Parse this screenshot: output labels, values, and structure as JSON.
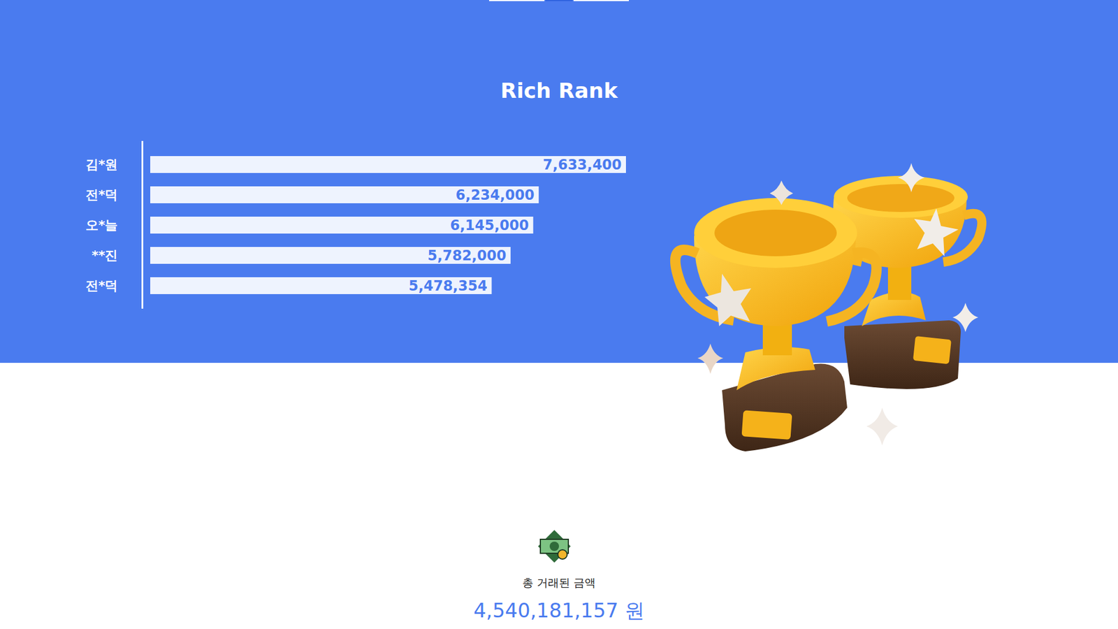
{
  "chart_data": {
    "type": "bar",
    "orientation": "horizontal",
    "title": "Rich Rank",
    "categories": [
      "김*원",
      "전*덕",
      "오*늘",
      "**진",
      "전*덕"
    ],
    "values": [
      7633400,
      6234000,
      6145000,
      5782000,
      5478354
    ],
    "value_labels": [
      "7,633,400",
      "6,234,000",
      "6,145,000",
      "5,782,000",
      "5,478,354"
    ],
    "data_labels": true,
    "color": "#eef3fe",
    "xlim": [
      0,
      7633400
    ],
    "xticks": [],
    "tick_labels": "y"
  },
  "total": {
    "label": "총 거래된 금액",
    "value": "4,540,181,157",
    "unit": "원"
  }
}
